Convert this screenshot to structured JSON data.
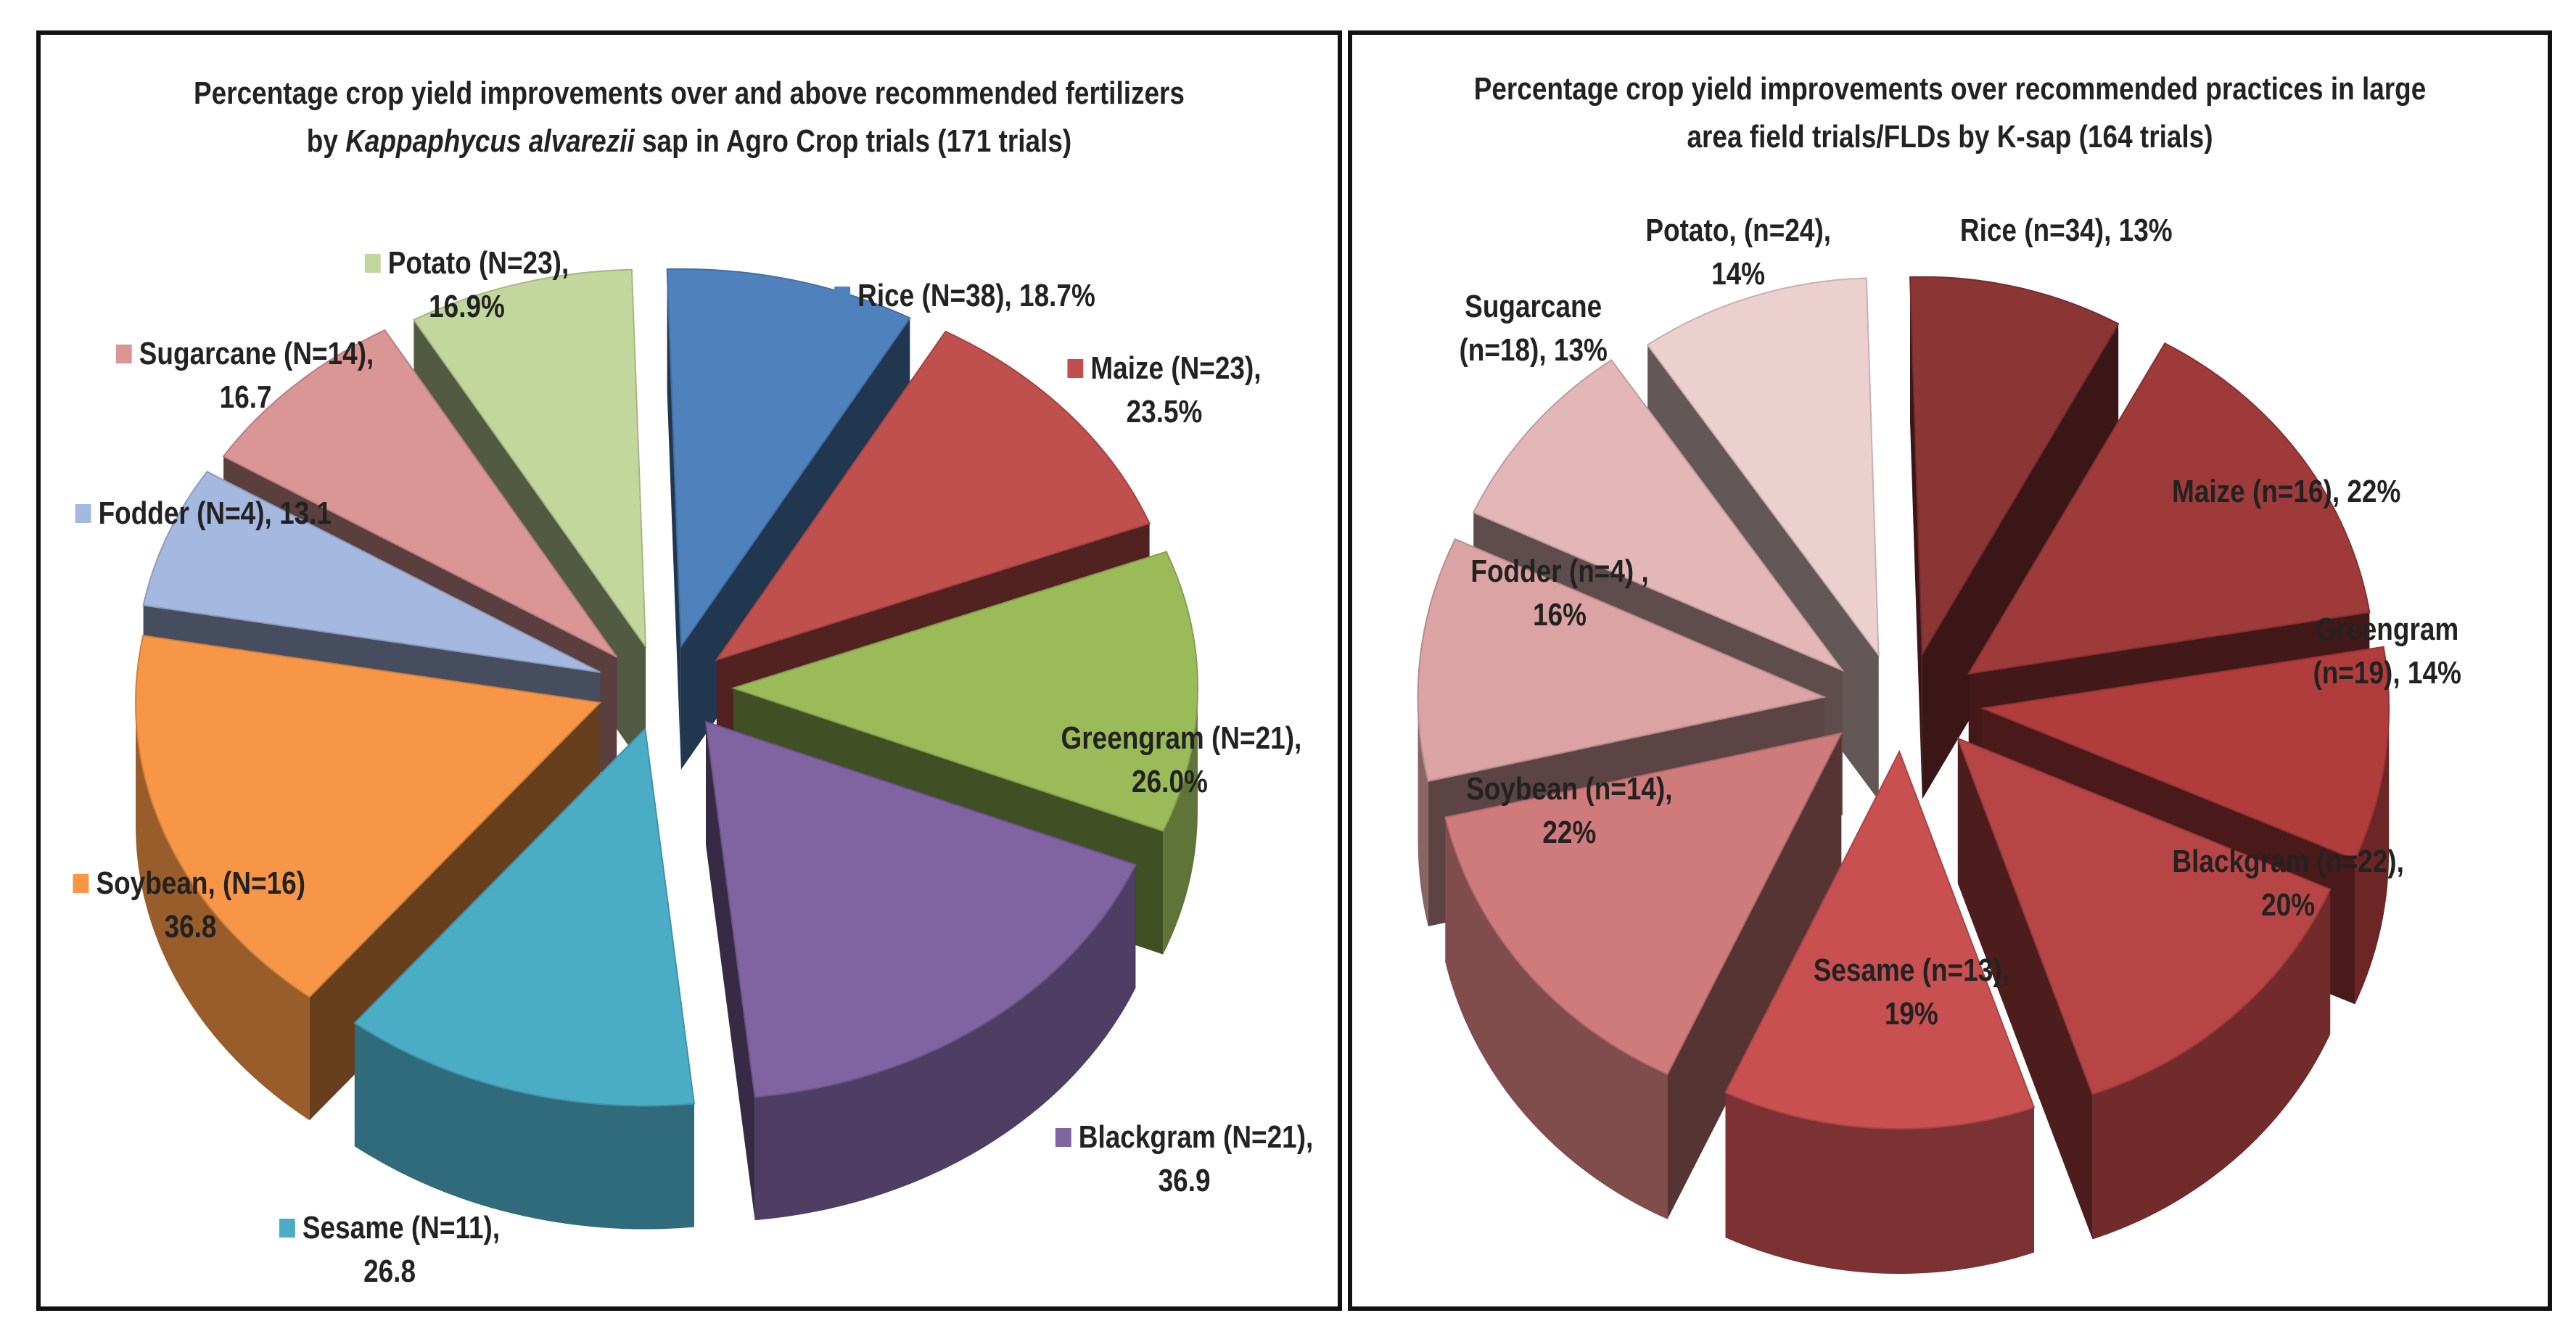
{
  "chart_data": [
    {
      "type": "pie",
      "title_line1": "Percentage crop yield improvements over and above recommended  fertilizers",
      "title_line2_prefix": "by ",
      "title_line2_italic": "Kappaphycus alvarezii",
      "title_line2_suffix": " sap in Agro Crop trials (171 trials)",
      "slices": [
        {
          "name": "Rice",
          "value": 18.7,
          "color": "#4f81bd",
          "label_l1": "Rice (N=38), 18.7%",
          "label_l2": ""
        },
        {
          "name": "Maize",
          "value": 23.5,
          "color": "#c0504d",
          "label_l1": "Maize (N=23),",
          "label_l2": "23.5%"
        },
        {
          "name": "Greengram",
          "value": 26.0,
          "color": "#9bbb59",
          "label_l1": "Greengram (N=21),",
          "label_l2": "26.0%"
        },
        {
          "name": "Blackgram",
          "value": 36.9,
          "color": "#8064a2",
          "label_l1": "Blackgram (N=21),",
          "label_l2": "36.9"
        },
        {
          "name": "Sesame",
          "value": 26.8,
          "color": "#4bacc6",
          "label_l1": "Sesame (N=11),",
          "label_l2": "26.8"
        },
        {
          "name": "Soybean",
          "value": 36.8,
          "color": "#f79646",
          "label_l1": "Soybean, (N=16)",
          "label_l2": "36.8"
        },
        {
          "name": "Fodder",
          "value": 13.1,
          "color": "#a5b8e0",
          "label_l1": "Fodder (N=4), 13.1",
          "label_l2": ""
        },
        {
          "name": "Sugarcane",
          "value": 16.7,
          "color": "#d99694",
          "label_l1": "Sugarcane (N=14),",
          "label_l2": "16.7"
        },
        {
          "name": "Potato",
          "value": 16.9,
          "color": "#c3d69b",
          "label_l1": "Potato (N=23),",
          "label_l2": "16.9%"
        }
      ]
    },
    {
      "type": "pie",
      "title_line1": "Percentage crop yield improvements over recommended practices in large",
      "title_line2": "area field trials/FLDs by K-sap (164 trials)",
      "slices": [
        {
          "name": "Rice",
          "value": 13,
          "color": "#8b3535",
          "label_l1": "Rice (n=34), 13%",
          "label_l2": ""
        },
        {
          "name": "Maize",
          "value": 22,
          "color": "#9e3a3a",
          "label_l1": "Maize (n=16), 22%",
          "label_l2": ""
        },
        {
          "name": "Greengram",
          "value": 14,
          "color": "#b03c3c",
          "label_l1": "Greengram",
          "label_l2": "(n=19), 14%"
        },
        {
          "name": "Blackgram",
          "value": 20,
          "color": "#b84545",
          "label_l1": "Blackgram (n=22),",
          "label_l2": "20%"
        },
        {
          "name": "Sesame",
          "value": 19,
          "color": "#c85050",
          "label_l1": "Sesame (n=13),",
          "label_l2": "19%"
        },
        {
          "name": "Soybean",
          "value": 22,
          "color": "#cf7b7b",
          "label_l1": "Soybean (n=14),",
          "label_l2": "22%"
        },
        {
          "name": "Fodder",
          "value": 16,
          "color": "#dba3a3",
          "label_l1": "Fodder (n=4) ,",
          "label_l2": "16%"
        },
        {
          "name": "Sugarcane",
          "value": 13,
          "color": "#e3b7b7",
          "label_l1": "Sugarcane",
          "label_l2": "(n=18), 13%"
        },
        {
          "name": "Potato",
          "value": 14,
          "color": "#ecd0d0",
          "label_l1": "Potato, (n=24),",
          "label_l2": "14%"
        }
      ]
    }
  ]
}
